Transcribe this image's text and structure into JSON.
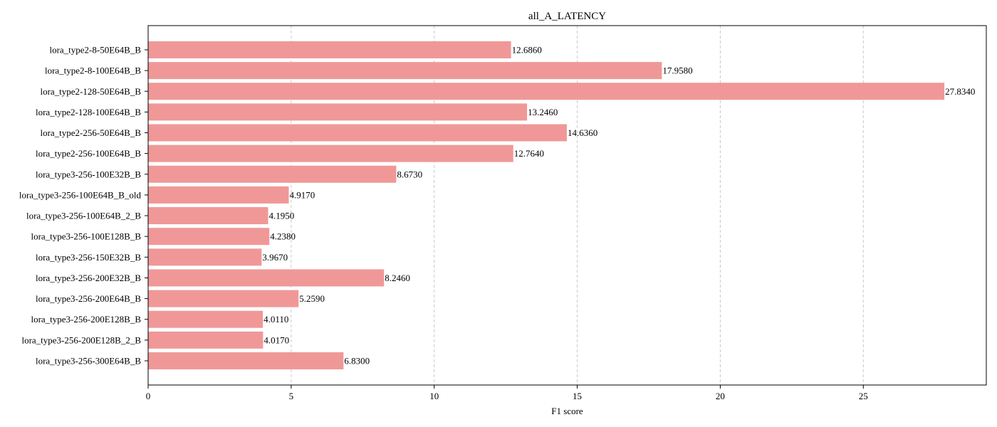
{
  "chart_data": {
    "type": "bar",
    "orientation": "horizontal",
    "title": "all_A_LATENCY",
    "xlabel": "F1 score",
    "ylabel": "",
    "xlim": [
      0,
      29.3
    ],
    "xticks": [
      0,
      5,
      10,
      15,
      20,
      25
    ],
    "grid": "x-dashed",
    "bar_color": "#f09898",
    "categories": [
      "lora_type2-8-50E64B_B",
      "lora_type2-8-100E64B_B",
      "lora_type2-128-50E64B_B",
      "lora_type2-128-100E64B_B",
      "lora_type2-256-50E64B_B",
      "lora_type2-256-100E64B_B",
      "lora_type3-256-100E32B_B",
      "lora_type3-256-100E64B_B_old",
      "lora_type3-256-100E64B_2_B",
      "lora_type3-256-100E128B_B",
      "lora_type3-256-150E32B_B",
      "lora_type3-256-200E32B_B",
      "lora_type3-256-200E64B_B",
      "lora_type3-256-200E128B_B",
      "lora_type3-256-200E128B_2_B",
      "lora_type3-256-300E64B_B"
    ],
    "values": [
      12.686,
      17.958,
      27.834,
      13.246,
      14.636,
      12.764,
      8.673,
      4.917,
      4.195,
      4.238,
      3.967,
      8.246,
      5.259,
      4.011,
      4.017,
      6.83
    ],
    "value_labels": [
      "12.6860",
      "17.9580",
      "27.8340",
      "13.2460",
      "14.6360",
      "12.7640",
      "8.6730",
      "4.9170",
      "4.1950",
      "4.2380",
      "3.9670",
      "8.2460",
      "5.2590",
      "4.0110",
      "4.0170",
      "6.8300"
    ]
  }
}
